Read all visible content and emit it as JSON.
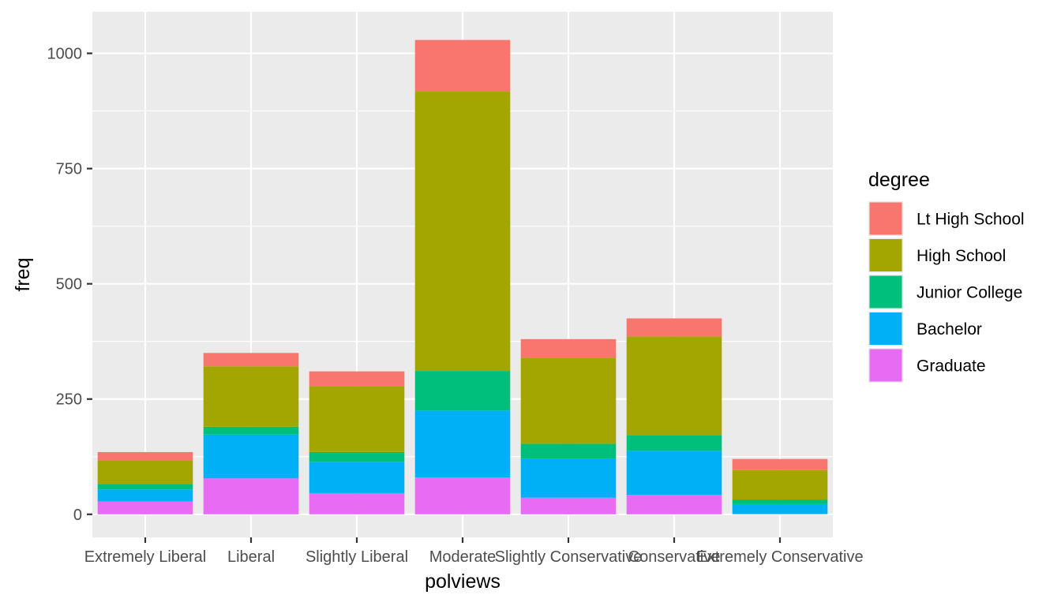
{
  "chart_data": {
    "type": "bar",
    "stacked": true,
    "xlabel": "polviews",
    "ylabel": "freq",
    "ylim": [
      -50,
      1090
    ],
    "yticks": [
      0,
      250,
      500,
      750,
      1000
    ],
    "ytick_labels": [
      "0",
      "250",
      "500",
      "750",
      "1000"
    ],
    "grid": true,
    "categories": [
      "Extremely Liberal",
      "Liberal",
      "Slightly Liberal",
      "Moderate",
      "Slightly Conservative",
      "Conservative",
      "Extremely Conservative"
    ],
    "series": [
      {
        "name": "Lt High School",
        "color": "#F8766D",
        "values": [
          19,
          29,
          32,
          112,
          40,
          39,
          24
        ]
      },
      {
        "name": "High School",
        "color": "#A3A500",
        "values": [
          50,
          131,
          143,
          606,
          187,
          214,
          64
        ]
      },
      {
        "name": "Junior College",
        "color": "#00BF7D",
        "values": [
          12,
          17,
          22,
          86,
          32,
          35,
          10
        ]
      },
      {
        "name": "Bachelor",
        "color": "#00B0F6",
        "values": [
          26,
          95,
          67,
          145,
          85,
          95,
          21
        ]
      },
      {
        "name": "Graduate",
        "color": "#E76BF3",
        "values": [
          28,
          78,
          46,
          80,
          36,
          42,
          1
        ]
      }
    ],
    "legend": {
      "title": "degree",
      "position": "right",
      "entries": [
        "Lt High School",
        "High School",
        "Junior College",
        "Bachelor",
        "Graduate"
      ]
    },
    "panel_background": "#EBEBEB",
    "grid_color": "#FFFFFF"
  }
}
